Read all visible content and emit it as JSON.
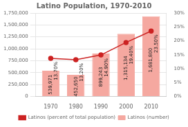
{
  "chart_data": {
    "type": "bar",
    "title": "Latino Population, 1970-2010",
    "x": [
      1970,
      1980,
      1990,
      2000,
      2010
    ],
    "xlim": [
      1964,
      2016
    ],
    "xticks": [
      1970,
      1980,
      1990,
      2000,
      2010
    ],
    "ylim": [
      0,
      1750000
    ],
    "yticks": [
      0,
      {
        "value": 250000,
        "label": "250,000"
      },
      {
        "value": 500000,
        "label": "500,000"
      },
      {
        "value": 750000,
        "label": "750,000"
      },
      {
        "value": 1000000,
        "label": "1,000,000"
      },
      {
        "value": 1250000,
        "label": "1,250,000"
      },
      {
        "value": 1500000,
        "label": "1,500,000"
      },
      {
        "value": 1750000,
        "label": "1,750,000"
      }
    ],
    "y2lim": [
      0,
      30
    ],
    "y2ticks": [
      {
        "value": 0,
        "label": "0%"
      },
      {
        "value": 5,
        "label": "5%"
      },
      {
        "value": 10,
        "label": "10%"
      },
      {
        "value": 15,
        "label": "15%"
      },
      {
        "value": 20,
        "label": "20%"
      },
      {
        "value": 25,
        "label": "25%"
      },
      {
        "value": 30,
        "label": "30%"
      }
    ],
    "grid": true,
    "legend": "bottom",
    "data_labels": true,
    "series": [
      {
        "name": "Latinos (number)",
        "type": "bar",
        "color": "#f5a8a0",
        "values": [
          539971,
          452650,
          899243,
          1315134,
          1681800
        ],
        "value_labels": [
          "539,971",
          "452,650",
          "899,243",
          "1,315,134",
          "1,681,800"
        ]
      },
      {
        "name": "Latinos (percent of total population)",
        "type": "line",
        "axis": "y2",
        "color": "#cc2222",
        "marker": "circle",
        "values": [
          13.7,
          13.2,
          14.9,
          19.4,
          23.5
        ],
        "value_labels": [
          "13.70%",
          "13.20%",
          "14.90%",
          "19.40%",
          "23.50%"
        ]
      }
    ]
  }
}
